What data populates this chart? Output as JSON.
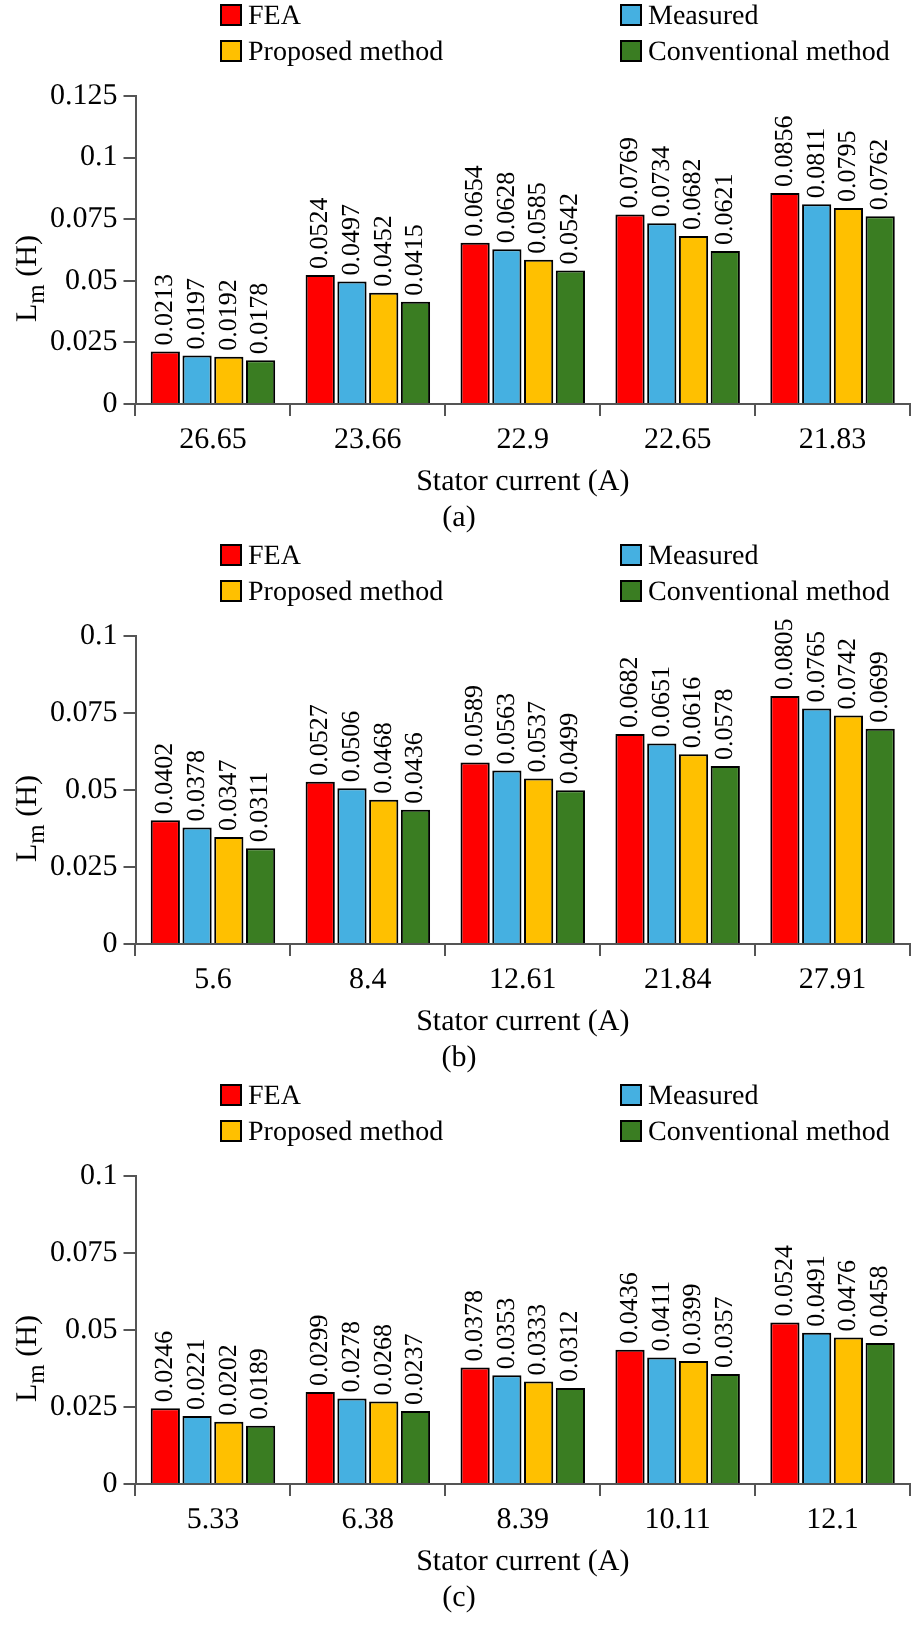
{
  "chart_data": [
    {
      "type": "bar",
      "xlabel": "Stator current (A)",
      "ylabel": "L$_{m}$ (H)",
      "categories": [
        "26.65",
        "23.66",
        "22.9",
        "22.65",
        "21.83"
      ],
      "series": [
        {
          "name": "FEA",
          "color": "#ff0000",
          "values": [
            0.0213,
            0.0524,
            0.0654,
            0.0769,
            0.0856
          ]
        },
        {
          "name": "Measured",
          "color": "#45b0e1",
          "values": [
            0.0197,
            0.0497,
            0.0628,
            0.0734,
            0.0811
          ]
        },
        {
          "name": "Proposed method",
          "color": "#ffc000",
          "values": [
            0.0192,
            0.0452,
            0.0585,
            0.0682,
            0.0795
          ]
        },
        {
          "name": "Conventional method",
          "color": "#3a7d22",
          "values": [
            0.0178,
            0.0415,
            0.0542,
            0.0621,
            0.0762
          ]
        }
      ],
      "ylim": [
        0,
        0.125
      ],
      "yticks": [
        0,
        0.025,
        0.05,
        0.075,
        0.1,
        0.125
      ],
      "data_labels": true,
      "legend": "top",
      "annotations": [
        "(a)"
      ]
    },
    {
      "type": "bar",
      "xlabel": "Stator current (A)",
      "ylabel": "L$_{m}$ (H)",
      "categories": [
        "5.6",
        "8.4",
        "12.61",
        "21.84",
        "27.91"
      ],
      "series": [
        {
          "name": "FEA",
          "color": "#ff0000",
          "values": [
            0.0402,
            0.0527,
            0.0589,
            0.0682,
            0.0805
          ]
        },
        {
          "name": "Measured",
          "color": "#45b0e1",
          "values": [
            0.0378,
            0.0506,
            0.0563,
            0.0651,
            0.0765
          ]
        },
        {
          "name": "Proposed method",
          "color": "#ffc000",
          "values": [
            0.0347,
            0.0468,
            0.0537,
            0.0616,
            0.0742
          ]
        },
        {
          "name": "Conventional method",
          "color": "#3a7d22",
          "values": [
            0.0311,
            0.0436,
            0.0499,
            0.0578,
            0.0699
          ]
        }
      ],
      "ylim": [
        0,
        0.1
      ],
      "yticks": [
        0,
        0.025,
        0.05,
        0.075,
        0.1
      ],
      "data_labels": true,
      "legend": "top",
      "annotations": [
        "(b)"
      ]
    },
    {
      "type": "bar",
      "xlabel": "Stator current (A)",
      "ylabel": "L$_{m}$ (H)",
      "categories": [
        "5.33",
        "6.38",
        "8.39",
        "10.11",
        "12.1"
      ],
      "series": [
        {
          "name": "FEA",
          "color": "#ff0000",
          "values": [
            0.0246,
            0.0299,
            0.0378,
            0.0436,
            0.0524
          ]
        },
        {
          "name": "Measured",
          "color": "#45b0e1",
          "values": [
            0.0221,
            0.0278,
            0.0353,
            0.0411,
            0.0491
          ]
        },
        {
          "name": "Proposed method",
          "color": "#ffc000",
          "values": [
            0.0202,
            0.0268,
            0.0333,
            0.0399,
            0.0476
          ]
        },
        {
          "name": "Conventional method",
          "color": "#3a7d22",
          "values": [
            0.0189,
            0.0237,
            0.0312,
            0.0357,
            0.0458
          ]
        }
      ],
      "ylim": [
        0,
        0.1
      ],
      "yticks": [
        0,
        0.025,
        0.05,
        0.075,
        0.1
      ],
      "data_labels": true,
      "legend": "top",
      "annotations": [
        "(c)"
      ]
    }
  ]
}
